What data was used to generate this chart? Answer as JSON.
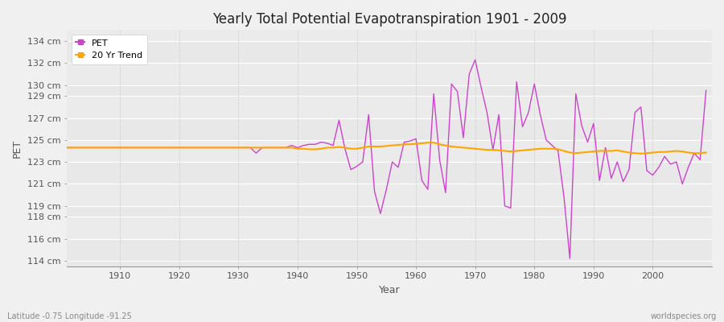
{
  "title": "Yearly Total Potential Evapotranspiration 1901 - 2009",
  "xlabel": "Year",
  "ylabel": "PET",
  "subtitle": "Latitude -0.75 Longitude -91.25",
  "watermark": "worldspecies.org",
  "pet_color": "#cc44cc",
  "trend_color": "#ffa500",
  "bg_color": "#f0f0f0",
  "plot_bg_color": "#ebebeb",
  "ylim": [
    113.5,
    135.0
  ],
  "ytick_labels": [
    "114 cm",
    "116 cm",
    "118 cm",
    "119 cm",
    "121 cm",
    "123 cm",
    "125 cm",
    "127 cm",
    "129 cm",
    "130 cm",
    "132 cm",
    "134 cm"
  ],
  "ytick_values": [
    114,
    116,
    118,
    119,
    121,
    123,
    125,
    127,
    129,
    130,
    132,
    134
  ],
  "legend_pet": "PET",
  "legend_trend": "20 Yr Trend",
  "years": [
    1901,
    1902,
    1903,
    1904,
    1905,
    1906,
    1907,
    1908,
    1909,
    1910,
    1911,
    1912,
    1913,
    1914,
    1915,
    1916,
    1917,
    1918,
    1919,
    1920,
    1921,
    1922,
    1923,
    1924,
    1925,
    1926,
    1927,
    1928,
    1929,
    1930,
    1931,
    1932,
    1933,
    1934,
    1935,
    1936,
    1937,
    1938,
    1939,
    1940,
    1941,
    1942,
    1943,
    1944,
    1945,
    1946,
    1947,
    1948,
    1949,
    1950,
    1951,
    1952,
    1953,
    1954,
    1955,
    1956,
    1957,
    1958,
    1959,
    1960,
    1961,
    1962,
    1963,
    1964,
    1965,
    1966,
    1967,
    1968,
    1969,
    1970,
    1971,
    1972,
    1973,
    1974,
    1975,
    1976,
    1977,
    1978,
    1979,
    1980,
    1981,
    1982,
    1983,
    1984,
    1985,
    1986,
    1987,
    1988,
    1989,
    1990,
    1991,
    1992,
    1993,
    1994,
    1995,
    1996,
    1997,
    1998,
    1999,
    2000,
    2001,
    2002,
    2003,
    2004,
    2005,
    2006,
    2007,
    2008,
    2009
  ],
  "pet_values": [
    124.3,
    124.3,
    124.3,
    124.3,
    124.3,
    124.3,
    124.3,
    124.3,
    124.3,
    124.3,
    124.3,
    124.3,
    124.3,
    124.3,
    124.3,
    124.3,
    124.3,
    124.3,
    124.3,
    124.3,
    124.3,
    124.3,
    124.3,
    124.3,
    124.3,
    124.3,
    124.3,
    124.3,
    124.3,
    124.3,
    124.3,
    124.3,
    123.8,
    124.3,
    124.3,
    124.3,
    124.3,
    124.3,
    124.5,
    124.3,
    124.5,
    124.6,
    124.6,
    124.8,
    124.7,
    124.5,
    126.8,
    124.2,
    122.3,
    122.6,
    123.0,
    127.3,
    120.3,
    118.3,
    120.5,
    123.0,
    122.5,
    124.8,
    124.9,
    125.1,
    121.3,
    120.5,
    129.2,
    123.2,
    120.2,
    130.1,
    129.4,
    125.2,
    131.0,
    132.3,
    129.8,
    127.5,
    124.1,
    127.3,
    119.0,
    118.8,
    130.3,
    126.2,
    127.5,
    130.1,
    127.3,
    125.0,
    124.5,
    124.0,
    119.8,
    114.2,
    129.2,
    126.3,
    124.8,
    126.5,
    121.3,
    124.3,
    121.5,
    123.0,
    121.2,
    122.3,
    127.5,
    128.0,
    122.2,
    121.8,
    122.5,
    123.5,
    122.8,
    123.0,
    121.0,
    122.5,
    123.8,
    123.2,
    129.5
  ],
  "trend_years": [
    1901,
    1902,
    1903,
    1904,
    1905,
    1906,
    1907,
    1908,
    1909,
    1910,
    1911,
    1912,
    1913,
    1914,
    1915,
    1916,
    1917,
    1918,
    1919,
    1920,
    1921,
    1922,
    1923,
    1924,
    1925,
    1926,
    1927,
    1928,
    1929,
    1930,
    1931,
    1932,
    1933,
    1934,
    1935,
    1936,
    1937,
    1938,
    1939,
    1940,
    1941,
    1942,
    1943,
    1944,
    1945,
    1946,
    1947,
    1948,
    1949,
    1950,
    1951,
    1952,
    1953,
    1954,
    1955,
    1956,
    1957,
    1958,
    1959,
    1960,
    1961,
    1962,
    1963,
    1964,
    1965,
    1966,
    1967,
    1968,
    1969,
    1970,
    1971,
    1972,
    1973,
    1974,
    1975,
    1976,
    1977,
    1978,
    1979,
    1980,
    1981,
    1982,
    1983,
    1984,
    1985,
    1986,
    1987,
    1988,
    1989,
    1990,
    1991,
    1992,
    1993,
    1994,
    1995,
    1996,
    1997,
    1998,
    1999,
    2000,
    2001,
    2002,
    2003,
    2004,
    2005,
    2006,
    2007,
    2008,
    2009
  ],
  "trend_values": [
    124.3,
    124.3,
    124.3,
    124.3,
    124.3,
    124.3,
    124.3,
    124.3,
    124.3,
    124.3,
    124.3,
    124.3,
    124.3,
    124.3,
    124.3,
    124.3,
    124.3,
    124.3,
    124.3,
    124.3,
    124.3,
    124.3,
    124.3,
    124.3,
    124.3,
    124.3,
    124.3,
    124.3,
    124.3,
    124.3,
    124.3,
    124.3,
    124.3,
    124.3,
    124.3,
    124.3,
    124.3,
    124.3,
    124.3,
    124.2,
    124.2,
    124.15,
    124.15,
    124.2,
    124.3,
    124.3,
    124.35,
    124.3,
    124.2,
    124.2,
    124.3,
    124.4,
    124.4,
    124.4,
    124.45,
    124.5,
    124.55,
    124.6,
    124.6,
    124.65,
    124.7,
    124.75,
    124.75,
    124.6,
    124.5,
    124.4,
    124.35,
    124.3,
    124.25,
    124.2,
    124.15,
    124.1,
    124.1,
    124.05,
    124.0,
    123.95,
    124.0,
    124.05,
    124.1,
    124.15,
    124.2,
    124.2,
    124.2,
    124.15,
    124.0,
    123.85,
    123.8,
    123.85,
    123.9,
    123.95,
    124.0,
    124.0,
    124.0,
    124.05,
    123.95,
    123.85,
    123.8,
    123.75,
    123.8,
    123.85,
    123.9,
    123.9,
    123.95,
    124.0,
    123.95,
    123.85,
    123.8,
    123.8,
    123.85
  ]
}
